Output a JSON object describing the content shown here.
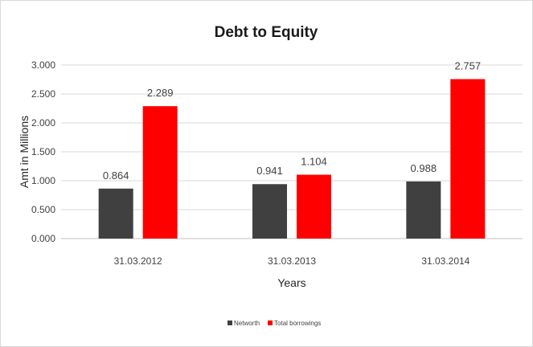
{
  "chart_data": {
    "type": "bar",
    "title": "Debt to Equity",
    "xlabel": "Years",
    "ylabel": "Amt in Millions",
    "categories": [
      "31.03.2012",
      "31.03.2013",
      "31.03.2014"
    ],
    "series": [
      {
        "name": "Networth",
        "values": [
          0.864,
          0.941,
          0.988
        ],
        "labels": [
          "0.864",
          "0.941",
          "0.988"
        ],
        "color": "#404040"
      },
      {
        "name": "Total borrowings",
        "values": [
          2.289,
          1.104,
          2.757
        ],
        "labels": [
          "2.289",
          "1.104",
          "2.757"
        ],
        "color": "#ff0000"
      }
    ],
    "ylim": [
      0,
      3
    ],
    "yticks": [
      "0.000",
      "0.500",
      "1.000",
      "1.500",
      "2.000",
      "2.500",
      "3.000"
    ],
    "grid": true,
    "legend_position": "bottom"
  }
}
